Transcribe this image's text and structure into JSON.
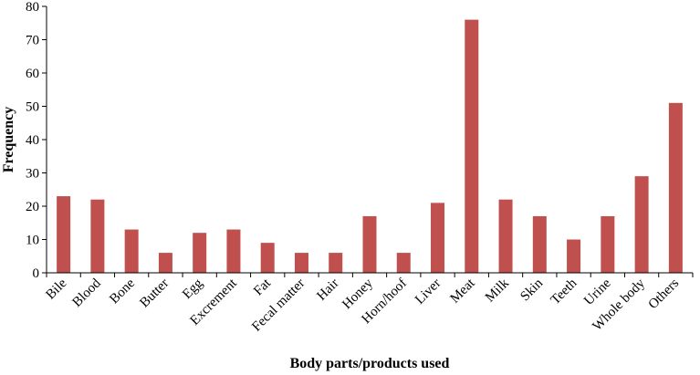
{
  "chart_data": {
    "type": "bar",
    "title": "",
    "xlabel": "Body parts/products used",
    "ylabel": "Frequency",
    "ylim": [
      0,
      80
    ],
    "yticks": [
      0,
      10,
      20,
      30,
      40,
      50,
      60,
      70,
      80
    ],
    "grid": false,
    "legend": "none",
    "bar_color": "#c0504d",
    "categories": [
      "Bile",
      "Blood",
      "Bone",
      "Butter",
      "Egg",
      "Excrement",
      "Fat",
      "Fecal matter",
      "Hair",
      "Honey",
      "Horn/hoof",
      "Liver",
      "Meat",
      "Milk",
      "Skin",
      "Teeth",
      "Urine",
      "Whole body",
      "Others"
    ],
    "values": [
      23,
      22,
      13,
      6,
      12,
      13,
      9,
      6,
      6,
      17,
      6,
      21,
      76,
      22,
      17,
      10,
      17,
      29,
      51
    ]
  }
}
